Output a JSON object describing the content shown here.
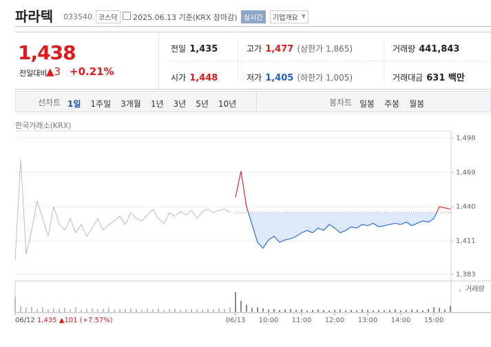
{
  "header": {
    "name": "파라텍",
    "code": "033540",
    "market": "코스닥",
    "date": "2025.06.13 기준(KRX 장마감)",
    "realtime": "실시간",
    "company": "기업개요"
  },
  "quote": {
    "price": "1,438",
    "change_label": "전일대비",
    "change": "▲3",
    "change_pct": "+0.21%",
    "stats": [
      {
        "label": "전일",
        "value": "1,435"
      },
      {
        "label": "고가",
        "value": "1,477",
        "extra": "(상한가 1,865)"
      },
      {
        "label": "거래량",
        "value": "441,843"
      },
      {
        "label": "시가",
        "value": "1,448"
      },
      {
        "label": "저가",
        "value": "1,405",
        "extra": "(하한가 1,005)"
      },
      {
        "label": "거래대금",
        "value": "631 백만"
      }
    ]
  },
  "toolbar": {
    "line_label": "선차트",
    "line_periods": [
      "1일",
      "1주일",
      "3개월",
      "1년",
      "3년",
      "5년",
      "10년"
    ],
    "candle_label": "봉차트",
    "candle_periods": [
      "일봉",
      "주봉",
      "월봉"
    ]
  },
  "source": "한국거래소(KRX)",
  "chart_data": {
    "type": "line",
    "categories": [
      "06/12",
      null,
      null,
      null,
      null,
      null,
      null,
      null,
      null,
      null,
      null,
      null,
      null,
      null,
      null,
      null,
      null,
      null,
      null,
      null,
      null,
      null,
      null,
      null,
      null,
      null,
      null,
      null,
      null,
      null,
      null,
      null,
      null,
      null,
      null,
      null,
      null,
      null,
      null,
      null,
      "06/13",
      null,
      null,
      null,
      null,
      null,
      "10:00",
      null,
      null,
      null,
      null,
      null,
      "11:00",
      null,
      null,
      null,
      null,
      null,
      "12:00",
      null,
      null,
      null,
      null,
      null,
      "13:00",
      null,
      null,
      null,
      null,
      null,
      "14:00",
      null,
      null,
      null,
      null,
      null,
      "15:00",
      null,
      null,
      null
    ],
    "series": [
      {
        "color": "#bbbbbb",
        "values": [
          1395,
          1480,
          1400,
          1420,
          1445,
          1430,
          1415,
          1440,
          1425,
          1420,
          1430,
          1418,
          1425,
          1415,
          1422,
          1430,
          1420,
          1425,
          1428,
          1432,
          1425,
          1435,
          1430,
          1428,
          1433,
          1438,
          1430,
          1426,
          1435,
          1432,
          1436,
          1433,
          1437,
          1430,
          1436,
          1438,
          1435,
          1437,
          1438,
          1435,
          null,
          null,
          null,
          null,
          null,
          null,
          null,
          null,
          null,
          null,
          null,
          null,
          null,
          null,
          null,
          null,
          null,
          null,
          null,
          null,
          null,
          null,
          null,
          null,
          null,
          null,
          null,
          null,
          null,
          null,
          null,
          null,
          null,
          null,
          null,
          null,
          null,
          null,
          null,
          null
        ]
      },
      {
        "color": "#e2242a",
        "color_below": "#2f6fd0",
        "fill_below": "#dde8f8",
        "values": [
          null,
          null,
          null,
          null,
          null,
          null,
          null,
          null,
          null,
          null,
          null,
          null,
          null,
          null,
          null,
          null,
          null,
          null,
          null,
          null,
          null,
          null,
          null,
          null,
          null,
          null,
          null,
          null,
          null,
          null,
          null,
          null,
          null,
          null,
          null,
          null,
          null,
          null,
          null,
          null,
          1448,
          1470,
          1440,
          1425,
          1410,
          1405,
          1412,
          1415,
          1410,
          1412,
          1413,
          1415,
          1418,
          1420,
          1418,
          1422,
          1420,
          1425,
          1422,
          1418,
          1420,
          1423,
          1422,
          1425,
          1424,
          1426,
          1423,
          1424,
          1425,
          1426,
          1425,
          1427,
          1424,
          1426,
          1428,
          1427,
          1430,
          1440,
          1439,
          1438
        ]
      }
    ],
    "baseline": 1435,
    "ylim": [
      1378,
      1504
    ],
    "yticks": [
      {
        "value": 1383,
        "label": "1,383"
      },
      {
        "value": 1411,
        "label": "1,411"
      },
      {
        "value": 1440,
        "label": "1,440"
      },
      {
        "value": 1469,
        "label": "1,469"
      },
      {
        "value": 1498,
        "label": "1,498"
      }
    ],
    "grid": true,
    "volume": {
      "label": "거래량",
      "color": "#bbbbbb",
      "color_today": "#8a7fb0",
      "values": [
        30,
        12,
        8,
        10,
        6,
        9,
        5,
        7,
        6,
        8,
        5,
        9,
        4,
        6,
        7,
        5,
        6,
        8,
        4,
        5,
        6,
        7,
        5,
        4,
        6,
        5,
        7,
        4,
        5,
        6,
        4,
        5,
        6,
        5,
        4,
        6,
        5,
        7,
        6,
        9,
        40,
        22,
        14,
        8,
        9,
        7,
        5,
        6,
        4,
        5,
        6,
        4,
        5,
        3,
        4,
        5,
        4,
        3,
        4,
        5,
        3,
        4,
        3,
        5,
        4,
        3,
        4,
        3,
        4,
        5,
        3,
        4,
        5,
        4,
        3,
        6,
        9,
        8,
        5,
        12
      ]
    },
    "footer_date": "06/12",
    "footer_change": "1,435 ▲101 (+7.57%)"
  }
}
